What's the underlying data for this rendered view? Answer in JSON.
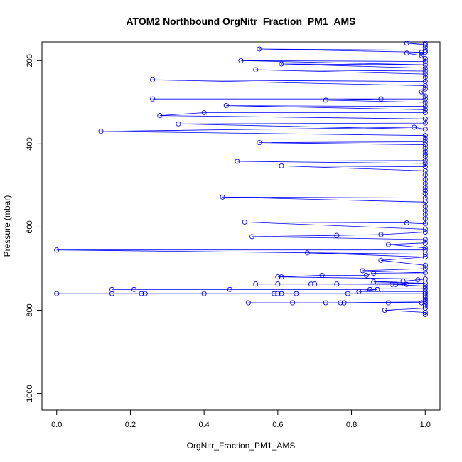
{
  "chart_data": {
    "type": "line",
    "title": "ATOM2 Northbound OrgNitr_Fraction_PM1_AMS",
    "xlabel": "OrgNitr_Fraction_PM1_AMS",
    "ylabel": "Pressure (mbar)",
    "xlim": [
      -0.04,
      1.04
    ],
    "ylim": [
      1040,
      155
    ],
    "y_inverted": true,
    "x_ticks": [
      0.0,
      0.2,
      0.4,
      0.6,
      0.8,
      1.0
    ],
    "x_tick_labels": [
      "0.0",
      "0.2",
      "0.4",
      "0.6",
      "0.8",
      "1.0"
    ],
    "y_ticks": [
      200,
      400,
      600,
      800,
      1000
    ],
    "y_tick_labels": [
      "200",
      "400",
      "600",
      "800",
      "1000"
    ],
    "grid": false,
    "legend": "none",
    "series": [
      {
        "color": "#0000ff",
        "marker": "open-circle",
        "points": [
          [
            1.0,
            810
          ],
          [
            1.0,
            805
          ],
          [
            0.89,
            800
          ],
          [
            1.0,
            795
          ],
          [
            1.0,
            790
          ],
          [
            1.0,
            785
          ],
          [
            0.99,
            782
          ],
          [
            0.9,
            782
          ],
          [
            0.78,
            782
          ],
          [
            0.73,
            782
          ],
          [
            0.64,
            782
          ],
          [
            0.52,
            782
          ],
          [
            0.77,
            782
          ],
          [
            1.0,
            780
          ],
          [
            1.0,
            775
          ],
          [
            1.0,
            770
          ],
          [
            1.0,
            766
          ],
          [
            1.0,
            760
          ],
          [
            0.0,
            760
          ],
          [
            0.15,
            760
          ],
          [
            0.23,
            760
          ],
          [
            0.24,
            760
          ],
          [
            0.4,
            760
          ],
          [
            0.6,
            760
          ],
          [
            0.61,
            760
          ],
          [
            0.59,
            760
          ],
          [
            0.65,
            760
          ],
          [
            0.79,
            760
          ],
          [
            1.0,
            760
          ],
          [
            1.0,
            755
          ],
          [
            0.82,
            755
          ],
          [
            0.87,
            750
          ],
          [
            0.85,
            750
          ],
          [
            0.47,
            750
          ],
          [
            0.21,
            750
          ],
          [
            0.15,
            750
          ],
          [
            1.0,
            748
          ],
          [
            1.0,
            742
          ],
          [
            0.91,
            738
          ],
          [
            0.92,
            738
          ],
          [
            0.95,
            738
          ],
          [
            0.7,
            737
          ],
          [
            0.69,
            737
          ],
          [
            0.6,
            737
          ],
          [
            0.54,
            737
          ],
          [
            0.76,
            737
          ],
          [
            1.0,
            735
          ],
          [
            0.86,
            732
          ],
          [
            0.94,
            730
          ],
          [
            0.98,
            727
          ],
          [
            1.0,
            725
          ],
          [
            0.61,
            720
          ],
          [
            0.6,
            720
          ],
          [
            0.72,
            716
          ],
          [
            0.84,
            716
          ],
          [
            0.86,
            711
          ],
          [
            1.0,
            710
          ],
          [
            0.83,
            705
          ],
          [
            1.0,
            700
          ],
          [
            1.0,
            692
          ],
          [
            0.88,
            680
          ],
          [
            1.0,
            672
          ],
          [
            0.68,
            662
          ],
          [
            1.0,
            665
          ],
          [
            0.0,
            655
          ],
          [
            1.0,
            655
          ],
          [
            1.0,
            650
          ],
          [
            0.9,
            642
          ],
          [
            1.0,
            638
          ],
          [
            1.0,
            630
          ],
          [
            0.53,
            623
          ],
          [
            0.76,
            620
          ],
          [
            0.88,
            618
          ],
          [
            1.0,
            612
          ],
          [
            1.0,
            605
          ],
          [
            0.51,
            588
          ],
          [
            0.95,
            590
          ],
          [
            1.0,
            592
          ],
          [
            1.0,
            580
          ],
          [
            1.0,
            570
          ],
          [
            1.0,
            560
          ],
          [
            1.0,
            550
          ],
          [
            1.0,
            540
          ],
          [
            0.45,
            528
          ],
          [
            1.0,
            530
          ],
          [
            1.0,
            520
          ],
          [
            1.0,
            512
          ],
          [
            1.0,
            505
          ],
          [
            1.0,
            495
          ],
          [
            1.0,
            485
          ],
          [
            1.0,
            475
          ],
          [
            1.0,
            465
          ],
          [
            0.61,
            453
          ],
          [
            1.0,
            455
          ],
          [
            1.0,
            447
          ],
          [
            0.49,
            442
          ],
          [
            1.0,
            440
          ],
          [
            1.0,
            430
          ],
          [
            1.0,
            425
          ],
          [
            1.0,
            418
          ],
          [
            1.0,
            410
          ],
          [
            1.0,
            402
          ],
          [
            0.55,
            397
          ],
          [
            1.0,
            395
          ],
          [
            1.0,
            388
          ],
          [
            1.0,
            380
          ],
          [
            0.12,
            370
          ],
          [
            0.97,
            360
          ],
          [
            1.0,
            365
          ],
          [
            0.33,
            352
          ],
          [
            1.0,
            350
          ],
          [
            1.0,
            340
          ],
          [
            0.28,
            332
          ],
          [
            0.4,
            325
          ],
          [
            1.0,
            325
          ],
          [
            1.0,
            318
          ],
          [
            0.46,
            308
          ],
          [
            1.0,
            310
          ],
          [
            1.0,
            300
          ],
          [
            0.73,
            295
          ],
          [
            0.88,
            292
          ],
          [
            0.26,
            292
          ],
          [
            1.0,
            292
          ],
          [
            1.0,
            285
          ],
          [
            0.99,
            275
          ],
          [
            1.0,
            268
          ],
          [
            1.0,
            260
          ],
          [
            0.26,
            246
          ],
          [
            1.0,
            250
          ],
          [
            1.0,
            240
          ],
          [
            1.0,
            232
          ],
          [
            0.54,
            222
          ],
          [
            1.0,
            225
          ],
          [
            1.0,
            218
          ],
          [
            0.61,
            208
          ],
          [
            1.0,
            210
          ],
          [
            0.5,
            200
          ],
          [
            1.0,
            202
          ],
          [
            1.0,
            195
          ],
          [
            0.99,
            188
          ],
          [
            0.95,
            182
          ],
          [
            0.99,
            180
          ],
          [
            1.0,
            180
          ],
          [
            0.55,
            172
          ],
          [
            1.0,
            175
          ],
          [
            1.0,
            168
          ],
          [
            1.0,
            162
          ],
          [
            0.95,
            158
          ],
          [
            1.0,
            158
          ]
        ]
      }
    ]
  }
}
